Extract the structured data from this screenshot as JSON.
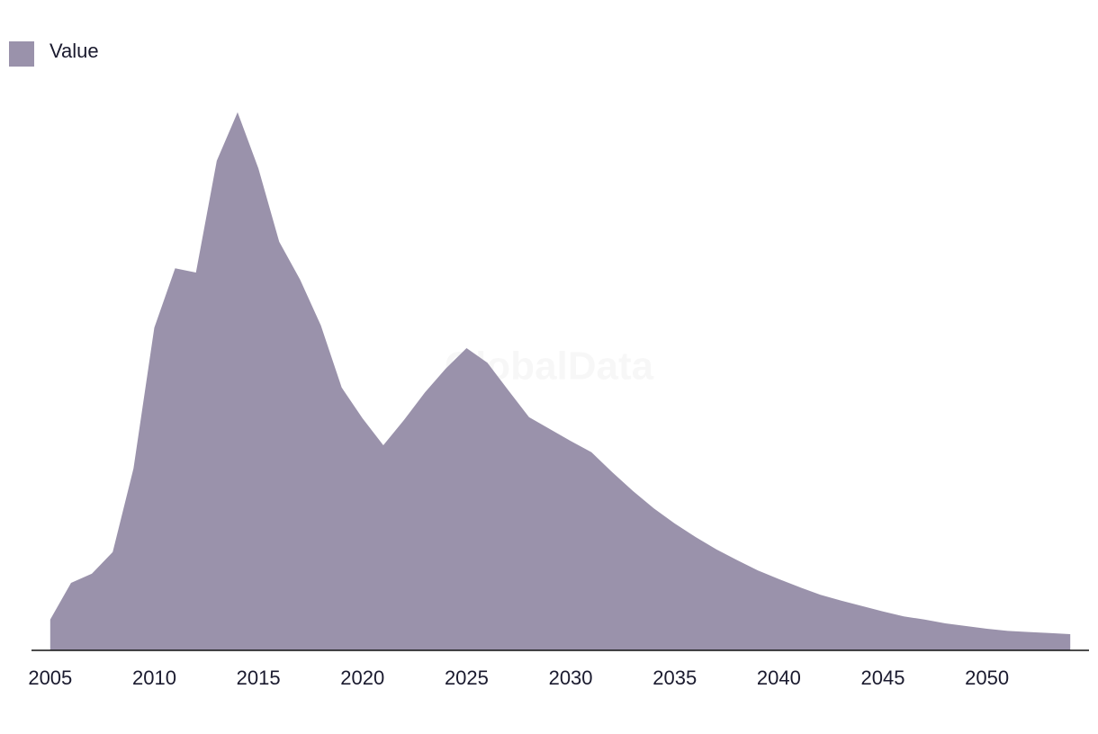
{
  "chart_data": {
    "type": "area",
    "watermark": "GlobalData",
    "x": [
      2005,
      2006,
      2007,
      2008,
      2009,
      2010,
      2011,
      2012,
      2013,
      2014,
      2015,
      2016,
      2017,
      2018,
      2019,
      2020,
      2021,
      2022,
      2023,
      2024,
      2025,
      2026,
      2027,
      2028,
      2029,
      2030,
      2031,
      2032,
      2033,
      2034,
      2035,
      2036,
      2037,
      2038,
      2039,
      2040,
      2041,
      2042,
      2043,
      2044,
      2045,
      2046,
      2047,
      2048,
      2049,
      2050,
      2051,
      2052,
      2053,
      2054
    ],
    "series": [
      {
        "name": "Value",
        "color": "#9a92ab",
        "values": [
          5.7,
          12.5,
          14.2,
          18.2,
          33.7,
          59.8,
          70.8,
          70.0,
          90.7,
          99.7,
          89.3,
          75.7,
          68.7,
          60.2,
          48.7,
          43.0,
          38.0,
          42.7,
          47.8,
          52.2,
          56.0,
          53.3,
          48.2,
          43.2,
          41.0,
          38.8,
          36.7,
          33.0,
          29.5,
          26.3,
          23.5,
          21.0,
          18.7,
          16.7,
          14.8,
          13.2,
          11.7,
          10.3,
          9.2,
          8.2,
          7.2,
          6.3,
          5.7,
          5.0,
          4.5,
          4.0,
          3.6,
          3.4,
          3.2,
          3.0
        ]
      }
    ],
    "xlim": [
      2004.1,
      2054.9
    ],
    "xticks": [
      2005,
      2010,
      2015,
      2020,
      2025,
      2030,
      2035,
      2040,
      2045,
      2050
    ],
    "ylim": [
      0,
      105
    ]
  }
}
